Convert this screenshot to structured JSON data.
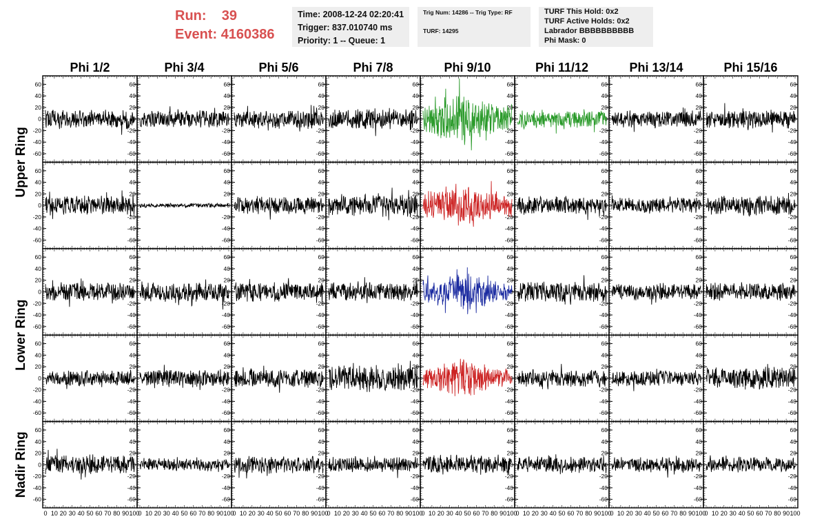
{
  "header": {
    "run_label": "Run:",
    "run_value": "39",
    "event_label": "Event:",
    "event_value": "4160386",
    "time": "Time: 2008-12-24 02:20:41",
    "trigger": "Trigger: 837.010740 ms",
    "priority": "Priority: 1 -- Queue: 1",
    "trig_num": "Trig Num: 14286 -- Trig Type: RF",
    "turf": "TURF: 14295",
    "turf_this_hold": "TURF This Hold: 0x2",
    "turf_active_holds": "TURF Active Holds: 0x2",
    "labrador": "Labrador BBBBBBBBBB",
    "phi_mask": "Phi Mask: 0"
  },
  "chart_data": {
    "type": "line",
    "columns": [
      "Phi 1/2",
      "Phi 3/4",
      "Phi 5/6",
      "Phi 7/8",
      "Phi 9/10",
      "Phi 11/12",
      "Phi 13/14",
      "Phi 15/16"
    ],
    "rows": [
      "Upper Ring",
      "Lower Ring",
      "Nadir Ring"
    ],
    "xlim": [
      0,
      100
    ],
    "ylim": [
      -70,
      70
    ],
    "x_ticks": [
      0,
      10,
      20,
      30,
      40,
      50,
      60,
      70,
      80,
      90,
      100
    ],
    "x_tick_labels": [
      "0",
      "10",
      "20",
      "30",
      "40",
      "50",
      "60",
      "70",
      "80",
      "90",
      "100"
    ],
    "y_ticks": [
      -60,
      -40,
      -20,
      0,
      20,
      40,
      60
    ],
    "y_tick_labels": [
      "-60",
      "-40",
      "-20",
      "0",
      "20",
      "40",
      "60"
    ],
    "sample_count": 260,
    "colors": {
      "default": "#000000",
      "green": "#2a9a2a",
      "red": "#cc2222",
      "blue": "#1a2aa0"
    },
    "panels": [
      {
        "row": 0,
        "col": 0,
        "amp": 14,
        "color": "default",
        "seed": 11
      },
      {
        "row": 0,
        "col": 1,
        "amp": 12,
        "color": "default",
        "seed": 12
      },
      {
        "row": 0,
        "col": 2,
        "amp": 13,
        "color": "default",
        "seed": 13
      },
      {
        "row": 0,
        "col": 3,
        "amp": 15,
        "color": "default",
        "seed": 14
      },
      {
        "row": 0,
        "col": 4,
        "amp": 30,
        "color": "green",
        "seed": 15,
        "envelope": true
      },
      {
        "row": 0,
        "col": 5,
        "amp": 14,
        "color": "green",
        "seed": 16
      },
      {
        "row": 0,
        "col": 6,
        "amp": 12,
        "color": "default",
        "seed": 17
      },
      {
        "row": 0,
        "col": 7,
        "amp": 13,
        "color": "default",
        "seed": 18
      },
      {
        "row": 1,
        "col": 0,
        "amp": 14,
        "color": "default",
        "seed": 21
      },
      {
        "row": 1,
        "col": 1,
        "amp": 3,
        "color": "default",
        "seed": 22
      },
      {
        "row": 1,
        "col": 2,
        "amp": 13,
        "color": "default",
        "seed": 23
      },
      {
        "row": 1,
        "col": 3,
        "amp": 16,
        "color": "default",
        "seed": 24
      },
      {
        "row": 1,
        "col": 4,
        "amp": 26,
        "color": "red",
        "seed": 25,
        "envelope": true
      },
      {
        "row": 1,
        "col": 5,
        "amp": 13,
        "color": "default",
        "seed": 26
      },
      {
        "row": 1,
        "col": 6,
        "amp": 11,
        "color": "default",
        "seed": 27
      },
      {
        "row": 1,
        "col": 7,
        "amp": 15,
        "color": "default",
        "seed": 28
      },
      {
        "row": 2,
        "col": 0,
        "amp": 14,
        "color": "default",
        "seed": 31
      },
      {
        "row": 2,
        "col": 1,
        "amp": 14,
        "color": "default",
        "seed": 32
      },
      {
        "row": 2,
        "col": 2,
        "amp": 14,
        "color": "default",
        "seed": 33
      },
      {
        "row": 2,
        "col": 3,
        "amp": 13,
        "color": "default",
        "seed": 34
      },
      {
        "row": 2,
        "col": 4,
        "amp": 22,
        "color": "blue",
        "seed": 35,
        "envelope": true
      },
      {
        "row": 2,
        "col": 5,
        "amp": 14,
        "color": "default",
        "seed": 36
      },
      {
        "row": 2,
        "col": 6,
        "amp": 12,
        "color": "default",
        "seed": 37
      },
      {
        "row": 2,
        "col": 7,
        "amp": 13,
        "color": "default",
        "seed": 38
      },
      {
        "row": 3,
        "col": 0,
        "amp": 11,
        "color": "default",
        "seed": 41
      },
      {
        "row": 3,
        "col": 1,
        "amp": 13,
        "color": "default",
        "seed": 42
      },
      {
        "row": 3,
        "col": 2,
        "amp": 13,
        "color": "default",
        "seed": 43
      },
      {
        "row": 3,
        "col": 3,
        "amp": 19,
        "color": "default",
        "seed": 44
      },
      {
        "row": 3,
        "col": 4,
        "amp": 22,
        "color": "red",
        "seed": 45,
        "envelope": true
      },
      {
        "row": 3,
        "col": 5,
        "amp": 12,
        "color": "default",
        "seed": 46
      },
      {
        "row": 3,
        "col": 6,
        "amp": 11,
        "color": "default",
        "seed": 47
      },
      {
        "row": 3,
        "col": 7,
        "amp": 16,
        "color": "default",
        "seed": 48
      },
      {
        "row": 4,
        "col": 0,
        "amp": 14,
        "color": "default",
        "seed": 51
      },
      {
        "row": 4,
        "col": 1,
        "amp": 9,
        "color": "default",
        "seed": 52
      },
      {
        "row": 4,
        "col": 2,
        "amp": 13,
        "color": "default",
        "seed": 53
      },
      {
        "row": 4,
        "col": 3,
        "amp": 11,
        "color": "default",
        "seed": 54
      },
      {
        "row": 4,
        "col": 4,
        "amp": 14,
        "color": "default",
        "seed": 55
      },
      {
        "row": 4,
        "col": 5,
        "amp": 12,
        "color": "default",
        "seed": 56
      },
      {
        "row": 4,
        "col": 6,
        "amp": 11,
        "color": "default",
        "seed": 57
      },
      {
        "row": 4,
        "col": 7,
        "amp": 11,
        "color": "default",
        "seed": 58
      }
    ]
  }
}
